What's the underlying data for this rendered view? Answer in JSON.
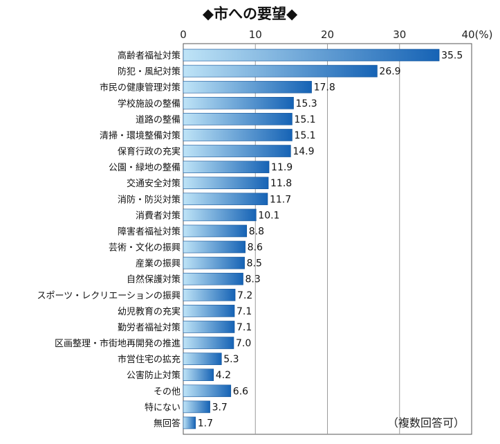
{
  "chart_data": {
    "type": "bar",
    "orientation": "horizontal",
    "title": "◆市への要望◆",
    "note": "（複数回答可）",
    "x_ticks": [
      "0",
      "10",
      "20",
      "30",
      "40(%)"
    ],
    "xlim": [
      0,
      40
    ],
    "grid": true,
    "categories": [
      "高齢者福祉対策",
      "防犯・風紀対策",
      "市民の健康管理対策",
      "学校施設の整備",
      "道路の整備",
      "清掃・環境整備対策",
      "保育行政の充実",
      "公園・緑地の整備",
      "交通安全対策",
      "消防・防災対策",
      "消費者対策",
      "障害者福祉対策",
      "芸術・文化の振興",
      "産業の振興",
      "自然保護対策",
      "スポーツ・レクリエーションの振興",
      "幼児教育の充実",
      "勤労者福祉対策",
      "区画整理・市街地再開発の推進",
      "市営住宅の拡充",
      "公害防止対策",
      "その他",
      "特にない",
      "無回答"
    ],
    "values": [
      35.5,
      26.9,
      17.8,
      15.3,
      15.1,
      15.1,
      14.9,
      11.9,
      11.8,
      11.7,
      10.1,
      8.8,
      8.6,
      8.5,
      8.3,
      7.2,
      7.1,
      7.1,
      7.0,
      5.3,
      4.2,
      6.6,
      3.7,
      1.7
    ],
    "value_labels": [
      "35.5",
      "26.9",
      "17.8",
      "15.3",
      "15.1",
      "15.1",
      "14.9",
      "11.9",
      "11.8",
      "11.7",
      "10.1",
      "8.8",
      "8.6",
      "8.5",
      "8.3",
      "7.2",
      "7.1",
      "7.1",
      "7.0",
      "5.3",
      "4.2",
      "6.6",
      "3.7",
      "1.7"
    ],
    "colors": {
      "bar_light": "#bfe4f7",
      "bar_dark": "#1663b5",
      "grid": "#9a9a9a",
      "frame": "#555555"
    }
  }
}
